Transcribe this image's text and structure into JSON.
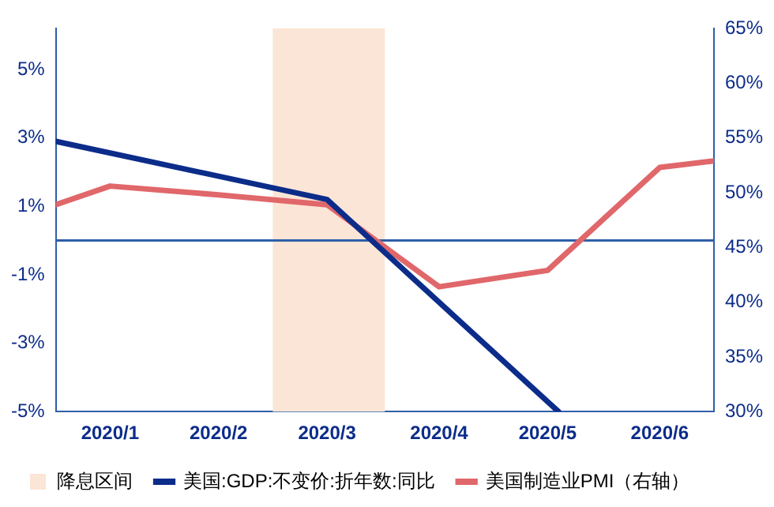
{
  "chart_data": {
    "type": "line",
    "xlim": [
      "2020-01-01",
      "2020-07-01"
    ],
    "xticks": [
      {
        "value": "2020-01-16",
        "label": "2020/1"
      },
      {
        "value": "2020-02-15",
        "label": "2020/2"
      },
      {
        "value": "2020-03-16",
        "label": "2020/3"
      },
      {
        "value": "2020-04-16",
        "label": "2020/4"
      },
      {
        "value": "2020-05-16",
        "label": "2020/5"
      },
      {
        "value": "2020-06-16",
        "label": "2020/6"
      }
    ],
    "ylim": [
      -5,
      6.2
    ],
    "yticks": [
      {
        "value": -5,
        "label": "-5%"
      },
      {
        "value": -3,
        "label": "-3%"
      },
      {
        "value": -1,
        "label": "-1%"
      },
      {
        "value": 1,
        "label": "1%"
      },
      {
        "value": 3,
        "label": "3%"
      },
      {
        "value": 5,
        "label": "5%"
      }
    ],
    "y2lim": [
      30,
      65
    ],
    "y2ticks": [
      {
        "value": 30,
        "label": "30%"
      },
      {
        "value": 35,
        "label": "35%"
      },
      {
        "value": 40,
        "label": "40%"
      },
      {
        "value": 45,
        "label": "45%"
      },
      {
        "value": 50,
        "label": "50%"
      },
      {
        "value": 55,
        "label": "55%"
      },
      {
        "value": 60,
        "label": "60%"
      },
      {
        "value": 65,
        "label": "65%"
      }
    ],
    "series": [
      {
        "name": "美国:GDP:不变价:折年数:同比",
        "color": "#0c2c8a",
        "x": [
          "2020-01-01",
          "2020-03-16",
          "2020-05-19"
        ],
        "values": [
          2.9,
          1.2,
          -5
        ]
      },
      {
        "name": "美国制造业PMI（右轴）",
        "color": "#e0676a",
        "axis": "y2",
        "x": [
          "2020-01-01",
          "2020-01-16",
          "2020-02-15",
          "2020-03-16",
          "2020-04-16",
          "2020-05-16",
          "2020-06-16",
          "2020-07-01"
        ],
        "values": [
          48.9,
          50.6,
          49.8,
          48.9,
          41.4,
          42.9,
          52.3,
          52.9
        ]
      }
    ],
    "bands": [
      {
        "axis": "x",
        "from": "2020-03-01",
        "to": "2020-04-01",
        "label": "降息区间",
        "color": "#fbe5d6"
      }
    ],
    "ref_lines": [
      {
        "axis": "y",
        "value": 0,
        "color": "#2e5fa8"
      }
    ],
    "grid": false,
    "legend": "bottom",
    "marker": "none",
    "line_style": "solid"
  }
}
